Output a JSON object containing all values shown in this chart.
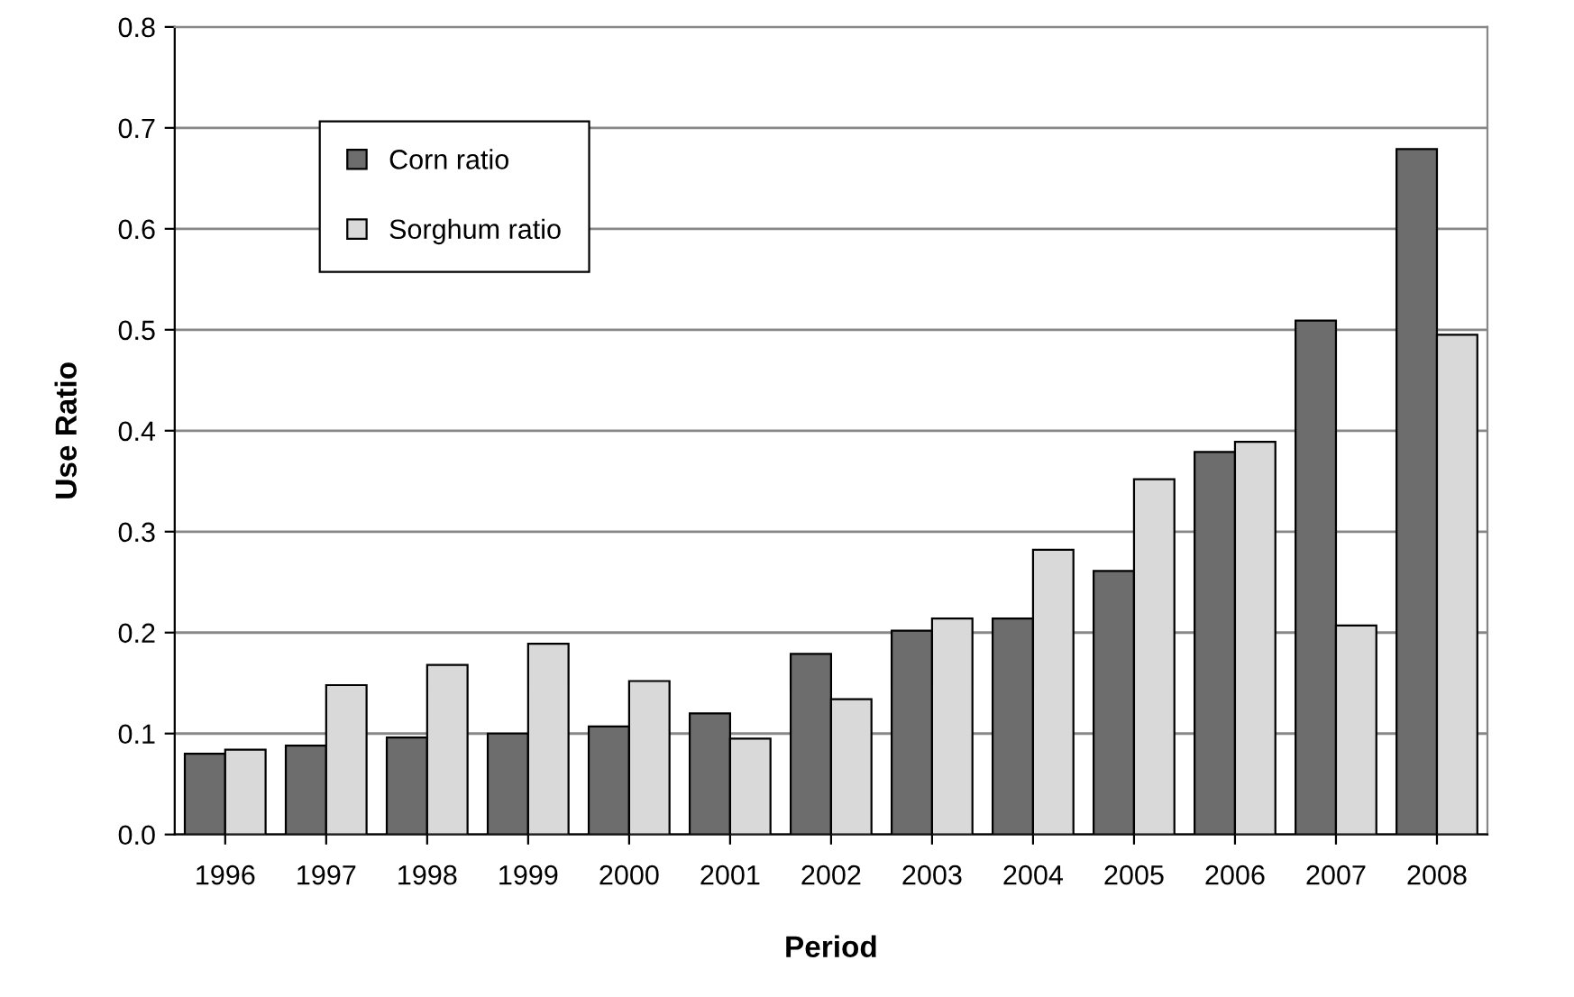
{
  "chart_data": {
    "type": "bar",
    "xlabel": "Period",
    "ylabel": "Use Ratio",
    "categories": [
      "1996",
      "1997",
      "1998",
      "1999",
      "2000",
      "2001",
      "2002",
      "2003",
      "2004",
      "2005",
      "2006",
      "2007",
      "2008"
    ],
    "series": [
      {
        "name": "Corn ratio",
        "color": "#6d6d6d",
        "values": [
          0.08,
          0.088,
          0.096,
          0.1,
          0.107,
          0.12,
          0.179,
          0.202,
          0.214,
          0.261,
          0.379,
          0.509,
          0.679
        ]
      },
      {
        "name": "Sorghum ratio",
        "color": "#d9d9d9",
        "values": [
          0.084,
          0.148,
          0.168,
          0.189,
          0.152,
          0.095,
          0.134,
          0.214,
          0.282,
          0.352,
          0.389,
          0.207,
          0.495
        ]
      }
    ],
    "ylim": [
      0,
      0.8
    ],
    "yticks": [
      {
        "value": 0,
        "label": "0.0"
      },
      0.1,
      0.2,
      0.3,
      0.4,
      0.5,
      0.6,
      0.7,
      0.8
    ],
    "grid": "y",
    "legend": "top left"
  }
}
